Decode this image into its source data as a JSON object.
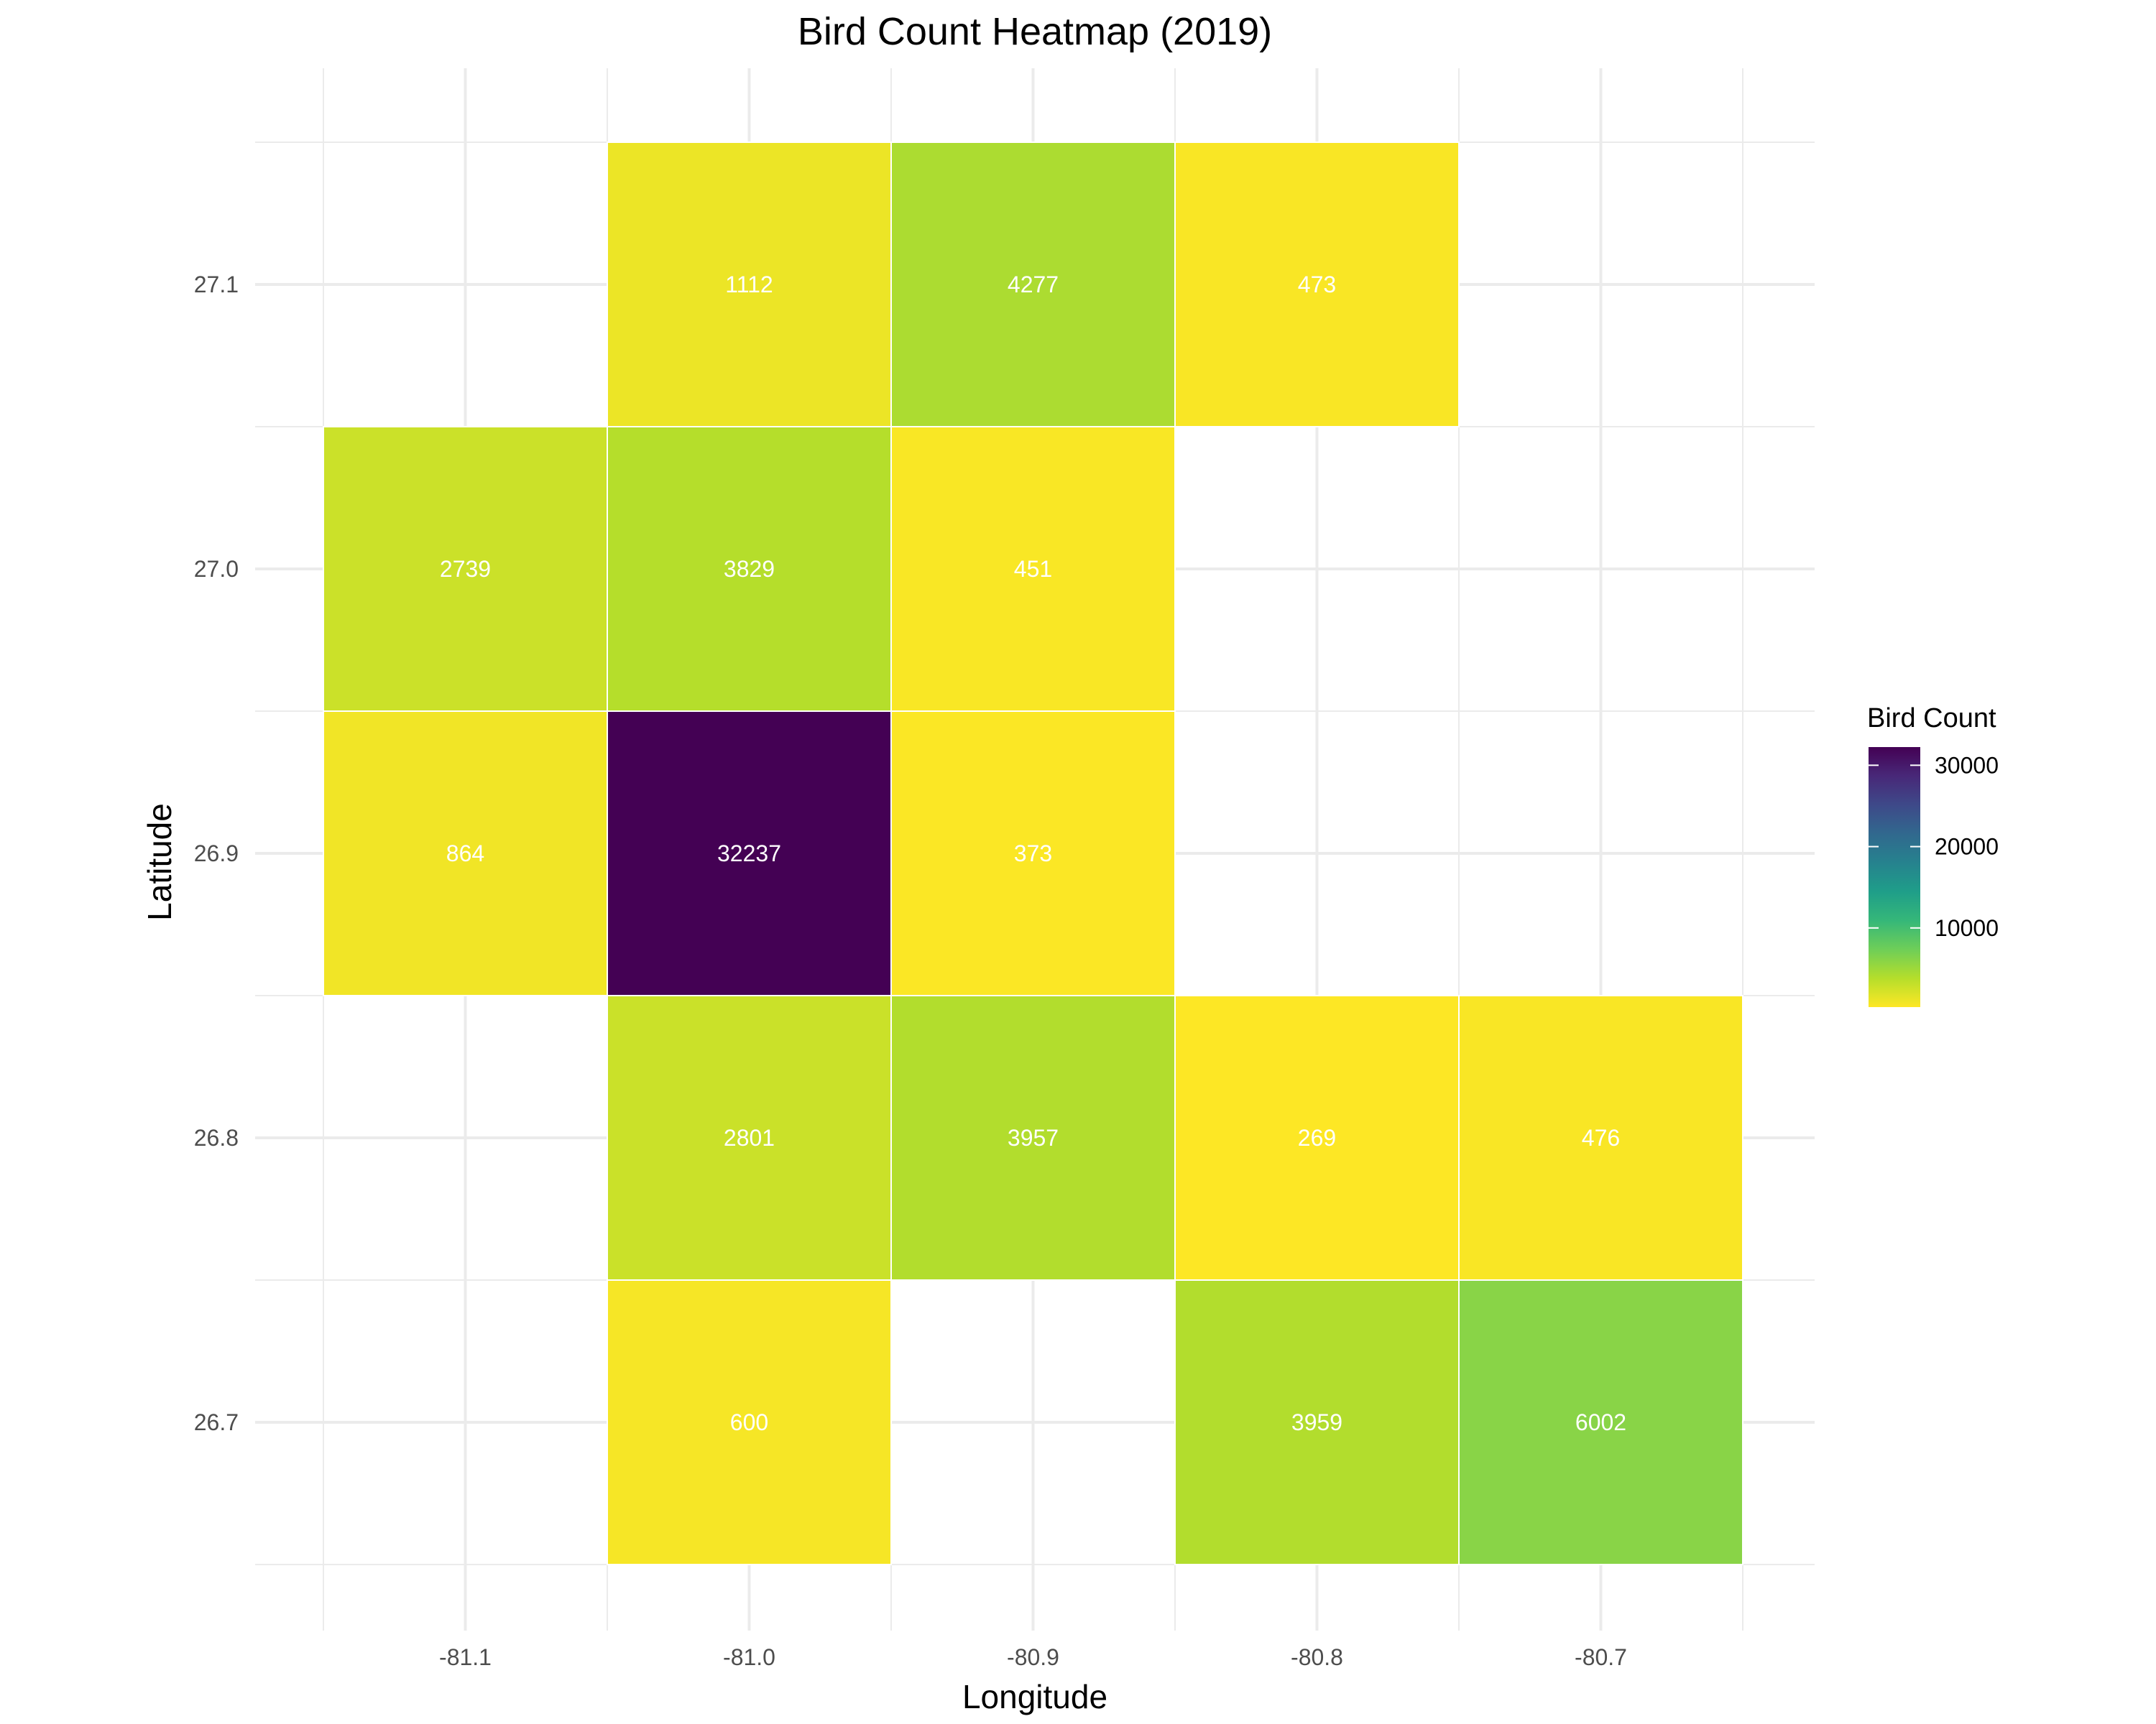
{
  "chart_data": {
    "type": "heatmap",
    "title": "Bird Count Heatmap (2019)",
    "xlabel": "Longitude",
    "ylabel": "Latitude",
    "x_ticks": [
      "-81.1",
      "-81.0",
      "-80.9",
      "-80.8",
      "-80.7"
    ],
    "y_ticks": [
      "27.1",
      "27.0",
      "26.9",
      "26.8",
      "26.7"
    ],
    "x_values": [
      -81.1,
      -81.0,
      -80.9,
      -80.8,
      -80.7
    ],
    "y_values": [
      27.1,
      27.0,
      26.9,
      26.8,
      26.7
    ],
    "xlim": [
      -81.15,
      -80.65
    ],
    "ylim": [
      26.65,
      27.15
    ],
    "grid": true,
    "legend": {
      "title": "Bird Count",
      "placement": "right",
      "ticks": [
        "30000",
        "20000",
        "10000"
      ],
      "tick_values": [
        30000,
        20000,
        10000
      ],
      "colorscale": "viridis (reversed)",
      "low_color": "#fde725",
      "high_color": "#440154"
    },
    "cells": [
      {
        "lon": -81.0,
        "lat": 27.1,
        "value": 1112,
        "label": "1112"
      },
      {
        "lon": -80.9,
        "lat": 27.1,
        "value": 4277,
        "label": "4277"
      },
      {
        "lon": -80.8,
        "lat": 27.1,
        "value": 473,
        "label": "473"
      },
      {
        "lon": -81.1,
        "lat": 27.0,
        "value": 2739,
        "label": "2739"
      },
      {
        "lon": -81.0,
        "lat": 27.0,
        "value": 3829,
        "label": "3829"
      },
      {
        "lon": -80.9,
        "lat": 27.0,
        "value": 451,
        "label": "451"
      },
      {
        "lon": -81.1,
        "lat": 26.9,
        "value": 864,
        "label": "864"
      },
      {
        "lon": -81.0,
        "lat": 26.9,
        "value": 32237,
        "label": "32237"
      },
      {
        "lon": -80.9,
        "lat": 26.9,
        "value": 373,
        "label": "373"
      },
      {
        "lon": -81.0,
        "lat": 26.8,
        "value": 2801,
        "label": "2801"
      },
      {
        "lon": -80.9,
        "lat": 26.8,
        "value": 3957,
        "label": "3957"
      },
      {
        "lon": -80.8,
        "lat": 26.8,
        "value": 269,
        "label": "269"
      },
      {
        "lon": -80.7,
        "lat": 26.8,
        "value": 476,
        "label": "476"
      },
      {
        "lon": -81.0,
        "lat": 26.7,
        "value": 600,
        "label": "600"
      },
      {
        "lon": -80.8,
        "lat": 26.7,
        "value": 3959,
        "label": "3959"
      },
      {
        "lon": -80.7,
        "lat": 26.7,
        "value": 6002,
        "label": "6002"
      }
    ]
  }
}
